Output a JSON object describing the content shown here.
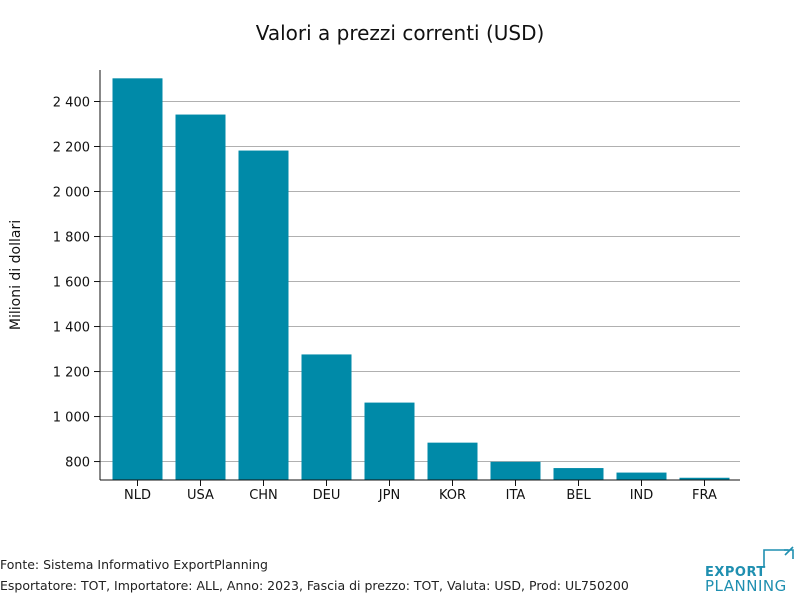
{
  "chart_data": {
    "type": "bar",
    "title": "Valori a prezzi correnti (USD)",
    "xlabel": "",
    "ylabel": "Milioni di dollari",
    "categories": [
      "NLD",
      "USA",
      "CHN",
      "DEU",
      "JPN",
      "KOR",
      "ITA",
      "BEL",
      "IND",
      "FRA"
    ],
    "values": [
      2503,
      2342,
      2182,
      1276,
      1062,
      884,
      799,
      771,
      751,
      728
    ],
    "ylim": [
      718,
      2540
    ],
    "yticks": [
      800,
      1000,
      1200,
      1400,
      1600,
      1800,
      2000,
      2200,
      2400
    ],
    "ytick_labels": [
      "800",
      "1 000",
      "1 200",
      "1 400",
      "1 600",
      "1 800",
      "2 000",
      "2 200",
      "2 400"
    ],
    "grid": true,
    "legend": "none",
    "bar_color": "#008aa8"
  },
  "footer": {
    "source": "Fonte: Sistema Informativo ExportPlanning",
    "details": "Esportatore: TOT, Importatore: ALL, Anno: 2023, Fascia di prezzo: TOT, Valuta: USD, Prod: UL750200"
  },
  "logo": {
    "line1": "EXPORT",
    "line2": "PLANNING",
    "color": "#1f8fb0"
  }
}
